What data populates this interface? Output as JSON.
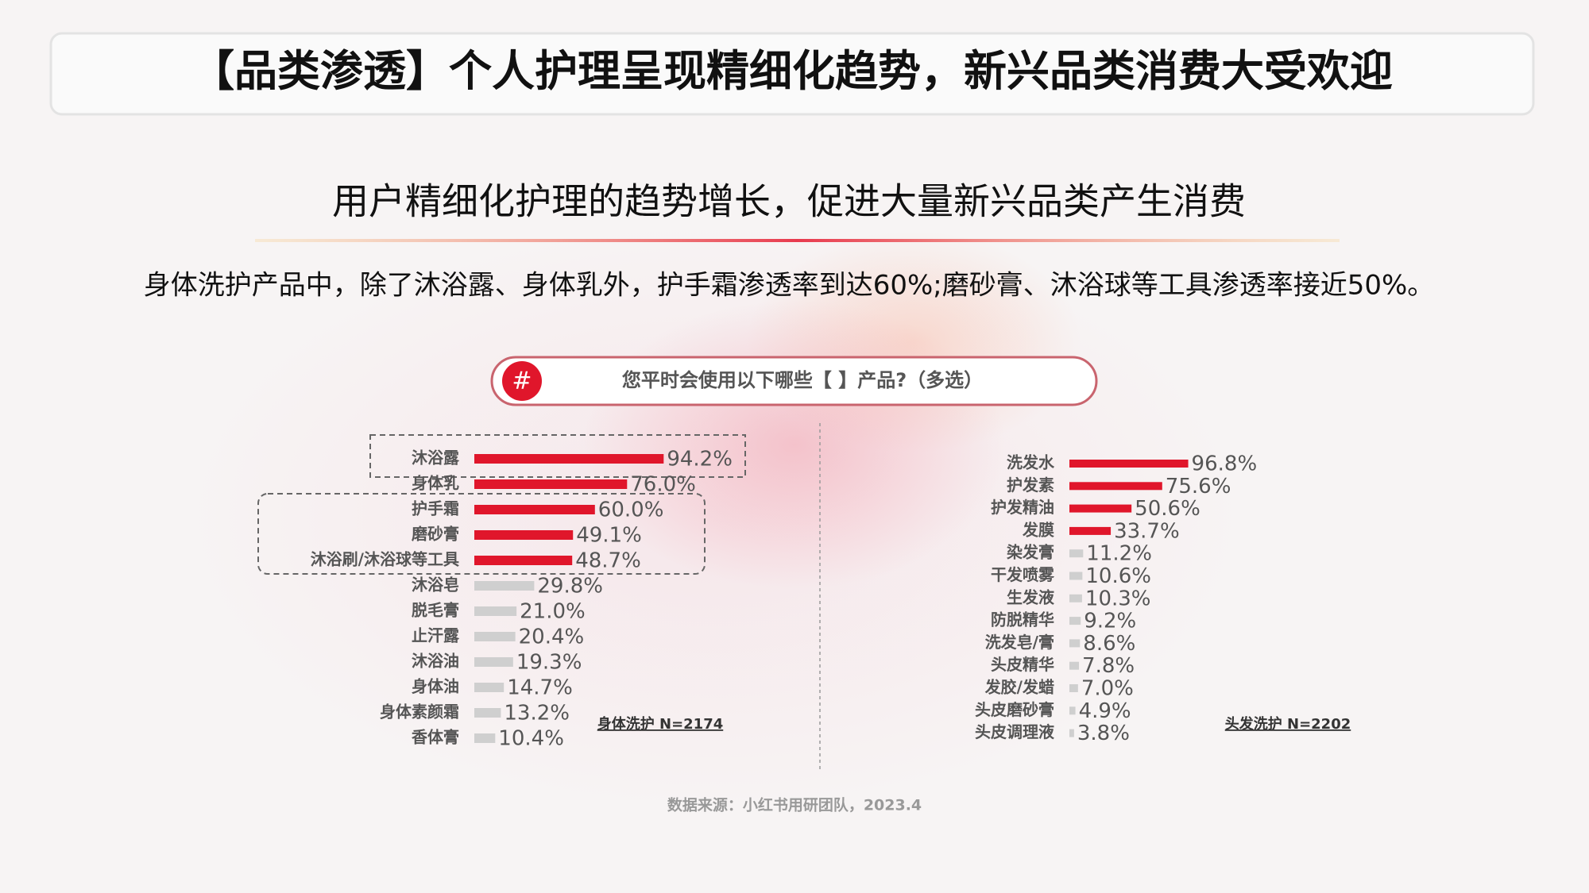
{
  "header": {
    "title": "【品类渗透】个人护理呈现精细化趋势，新兴品类消费大受欢迎"
  },
  "subtitle": "用户精细化护理的趋势增长，促进大量新兴品类产生消费",
  "description": "身体洗护产品中，除了沐浴露、身体乳外，护手霜渗透率到达60%;磨砂膏、沐浴球等工具渗透率接近50%。",
  "question": {
    "icon": "#",
    "text": "您平时会使用以下哪些【 】产品?（多选）"
  },
  "chart_data": [
    {
      "type": "bar",
      "orientation": "horizontal",
      "note": "身体洗护 N=2174",
      "categories": [
        "沐浴露",
        "身体乳",
        "护手霜",
        "磨砂膏",
        "沐浴刷/沐浴球等工具",
        "沐浴皂",
        "脱毛膏",
        "止汗露",
        "沐浴油",
        "身体油",
        "身体素颜霜",
        "香体膏"
      ],
      "values": [
        94.2,
        76.0,
        60.0,
        49.1,
        48.7,
        29.8,
        21.0,
        20.4,
        19.3,
        14.7,
        13.2,
        10.4
      ],
      "value_labels": [
        "94.2%",
        "76.0%",
        "60.0%",
        "49.1%",
        "48.7%",
        "29.8%",
        "21.0%",
        "20.4%",
        "19.3%",
        "14.7%",
        "13.2%",
        "10.4%"
      ],
      "colors": [
        "#e0162b",
        "#e0162b",
        "#e0162b",
        "#e0162b",
        "#e0162b",
        "#cfcfcf",
        "#cfcfcf",
        "#cfcfcf",
        "#cfcfcf",
        "#cfcfcf",
        "#cfcfcf",
        "#cfcfcf"
      ]
    },
    {
      "type": "bar",
      "orientation": "horizontal",
      "note": "头发洗护 N=2202",
      "categories": [
        "洗发水",
        "护发素",
        "护发精油",
        "发膜",
        "染发膏",
        "干发喷雾",
        "生发液",
        "防脱精华",
        "洗发皂/膏",
        "头皮精华",
        "发胶/发蜡",
        "头皮磨砂膏",
        "头皮调理液"
      ],
      "values": [
        96.8,
        75.6,
        50.6,
        33.7,
        11.2,
        10.6,
        10.3,
        9.2,
        8.6,
        7.8,
        7.0,
        4.9,
        3.8
      ],
      "value_labels": [
        "96.8%",
        "75.6%",
        "50.6%",
        "33.7%",
        "11.2%",
        "10.6%",
        "10.3%",
        "9.2%",
        "8.6%",
        "7.8%",
        "7.0%",
        "4.9%",
        "3.8%"
      ],
      "colors": [
        "#e0162b",
        "#e0162b",
        "#e0162b",
        "#e0162b",
        "#cfcfcf",
        "#cfcfcf",
        "#cfcfcf",
        "#cfcfcf",
        "#cfcfcf",
        "#cfcfcf",
        "#cfcfcf",
        "#cfcfcf",
        "#cfcfcf"
      ]
    }
  ],
  "source": "数据来源：小红书用研团队，2023.4"
}
